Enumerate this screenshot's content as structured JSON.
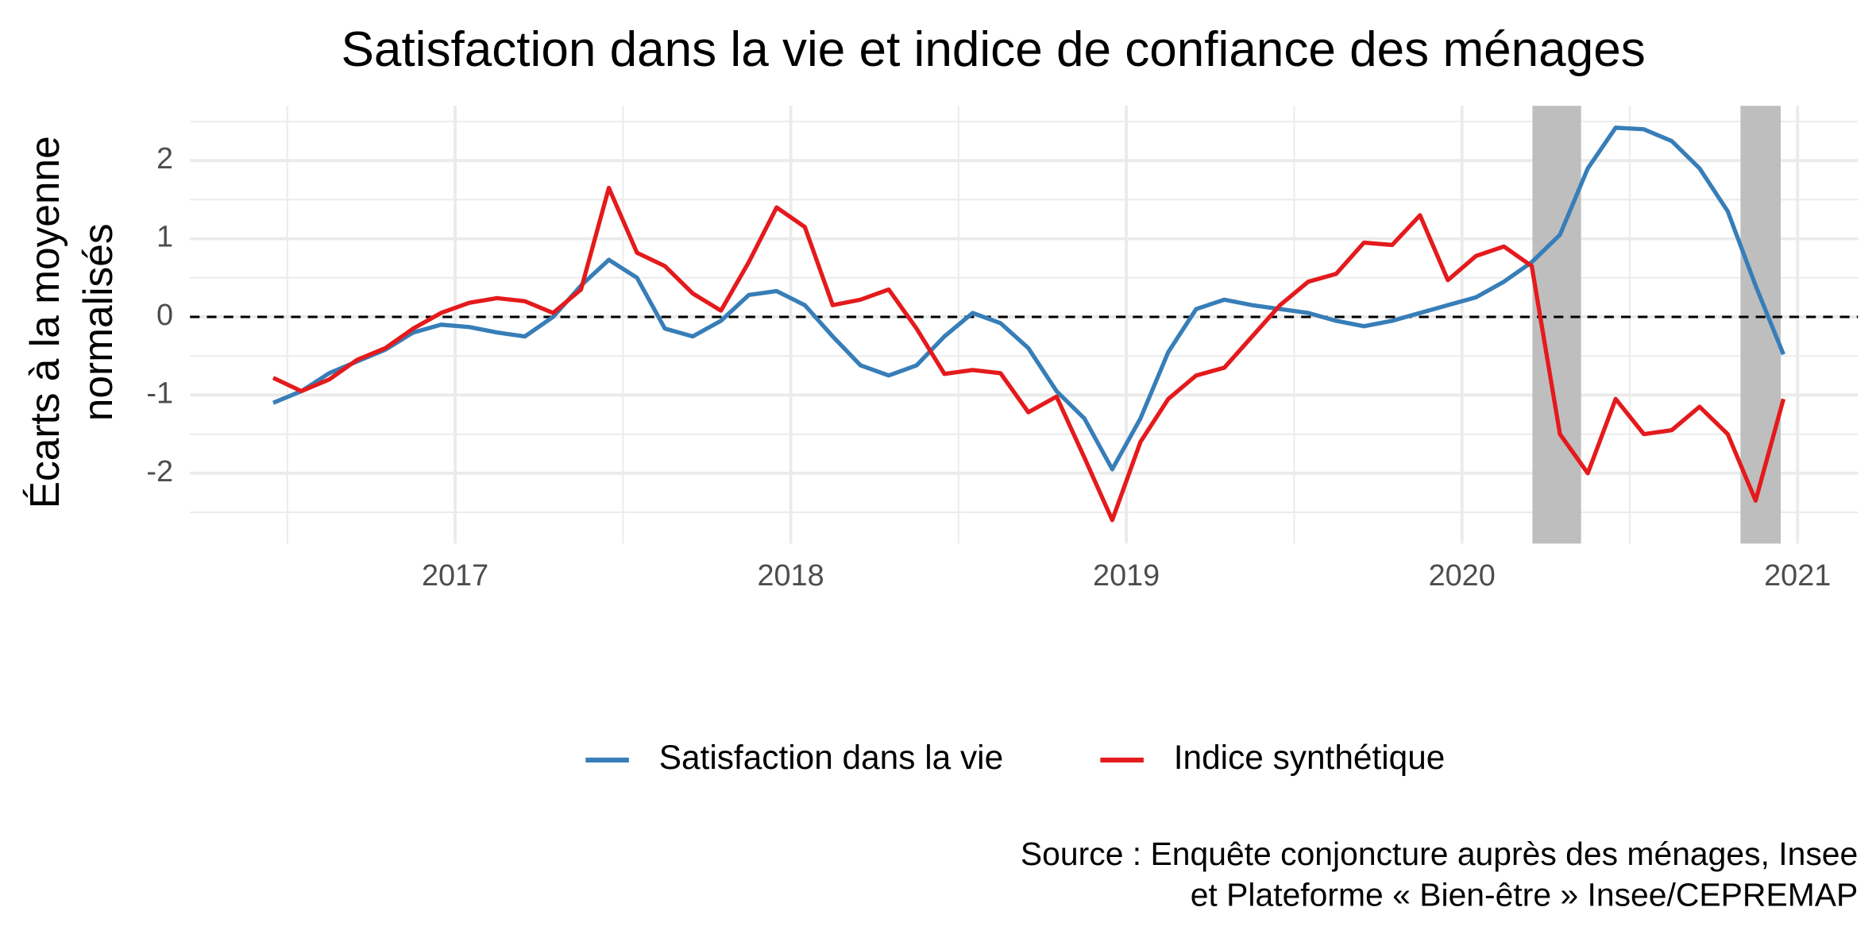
{
  "chart_data": {
    "type": "line",
    "title": "Satisfaction dans la vie et indice de confiance des ménages",
    "y_label": [
      "Écarts à la moyenne",
      "normalisés"
    ],
    "source": [
      "Source : Enquête conjoncture auprès des ménages, Insee",
      "et Plateforme « Bien-être » Insee/CEPREMAP"
    ],
    "x": [
      2016.458,
      2016.542,
      2016.625,
      2016.708,
      2016.792,
      2016.875,
      2016.958,
      2017.042,
      2017.125,
      2017.208,
      2017.292,
      2017.375,
      2017.458,
      2017.542,
      2017.625,
      2017.708,
      2017.792,
      2017.875,
      2017.958,
      2018.042,
      2018.125,
      2018.208,
      2018.292,
      2018.375,
      2018.458,
      2018.542,
      2018.625,
      2018.708,
      2018.792,
      2018.875,
      2018.958,
      2019.042,
      2019.125,
      2019.208,
      2019.292,
      2019.375,
      2019.458,
      2019.542,
      2019.625,
      2019.708,
      2019.792,
      2019.875,
      2019.958,
      2020.042,
      2020.125,
      2020.208,
      2020.292,
      2020.375,
      2020.458,
      2020.542,
      2020.625,
      2020.708,
      2020.792,
      2020.875,
      2020.958
    ],
    "series": [
      {
        "name": "Satisfaction dans la vie",
        "color": "#377eb8",
        "values": [
          -1.1,
          -0.95,
          -0.72,
          -0.57,
          -0.42,
          -0.2,
          -0.1,
          -0.13,
          -0.2,
          -0.25,
          0.0,
          0.4,
          0.73,
          0.5,
          -0.15,
          -0.25,
          -0.05,
          0.28,
          0.33,
          0.15,
          -0.25,
          -0.62,
          -0.75,
          -0.62,
          -0.25,
          0.05,
          -0.08,
          -0.4,
          -0.95,
          -1.3,
          -1.95,
          -1.3,
          -0.45,
          0.1,
          0.22,
          0.15,
          0.1,
          0.05,
          -0.05,
          -0.12,
          -0.05,
          0.05,
          0.15,
          0.25,
          0.45,
          0.7,
          1.05,
          1.9,
          2.42,
          2.4,
          2.25,
          1.9,
          1.35,
          0.4,
          -0.48
        ]
      },
      {
        "name": "Indice synthétique",
        "color": "#e41a1c",
        "values": [
          -0.78,
          -0.95,
          -0.8,
          -0.55,
          -0.4,
          -0.15,
          0.05,
          0.18,
          0.24,
          0.2,
          0.05,
          0.35,
          1.65,
          0.82,
          0.65,
          0.3,
          0.08,
          0.7,
          1.4,
          1.15,
          0.15,
          0.22,
          0.35,
          -0.15,
          -0.73,
          -0.68,
          -0.72,
          -1.22,
          -1.02,
          -1.8,
          -2.6,
          -1.6,
          -1.05,
          -0.75,
          -0.65,
          -0.25,
          0.15,
          0.45,
          0.55,
          0.95,
          0.92,
          1.3,
          0.47,
          0.78,
          0.9,
          0.65,
          -1.5,
          -2.0,
          -1.05,
          -1.5,
          -1.45,
          -1.15,
          -1.5,
          -2.35,
          -1.05
        ]
      }
    ],
    "xlim": [
      2016.21,
      2021.18
    ],
    "xticks": [
      2017,
      2018,
      2019,
      2020,
      2021
    ],
    "x_minor_ticks": [
      2016.5,
      2017.5,
      2018.5,
      2019.5,
      2020.5
    ],
    "ylim": [
      -2.9,
      2.7
    ],
    "yticks": [
      -2,
      -1,
      0,
      1,
      2
    ],
    "y_minor_ticks": [
      -2.5,
      -1.5,
      -0.5,
      0.5,
      1.5,
      2.5
    ],
    "hline": 0,
    "shaded": [
      [
        2020.21,
        2020.355
      ],
      [
        2020.83,
        2020.95
      ]
    ],
    "shade_color": "#bebebe",
    "grid": true,
    "legend": "bottom"
  }
}
